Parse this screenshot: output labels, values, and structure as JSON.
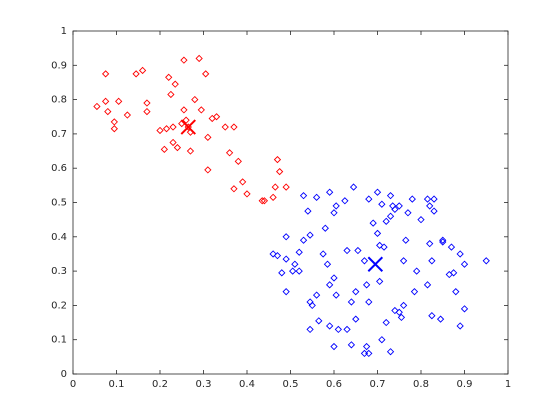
{
  "chart_data": {
    "type": "scatter",
    "xlim": [
      0,
      1
    ],
    "ylim": [
      0,
      1
    ],
    "xticks": [
      0,
      0.1,
      0.2,
      0.3,
      0.4,
      0.5,
      0.6,
      0.7,
      0.8,
      0.9,
      1
    ],
    "yticks": [
      0,
      0.1,
      0.2,
      0.3,
      0.4,
      0.5,
      0.6,
      0.7,
      0.8,
      0.9,
      1
    ],
    "grid": false,
    "series": [
      {
        "color": "#ff0000",
        "marker": "diamond",
        "x": [
          0.075,
          0.145,
          0.16,
          0.055,
          0.075,
          0.08,
          0.105,
          0.095,
          0.095,
          0.125,
          0.17,
          0.22,
          0.235,
          0.225,
          0.255,
          0.29,
          0.305,
          0.255,
          0.28,
          0.295,
          0.2,
          0.215,
          0.23,
          0.25,
          0.265,
          0.27,
          0.26,
          0.23,
          0.21,
          0.24,
          0.27,
          0.31,
          0.32,
          0.33,
          0.35,
          0.37,
          0.36,
          0.38,
          0.39,
          0.37,
          0.4,
          0.31,
          0.435,
          0.44,
          0.465,
          0.46,
          0.47,
          0.475,
          0.49,
          0.17
        ],
        "y": [
          0.875,
          0.875,
          0.885,
          0.78,
          0.795,
          0.765,
          0.795,
          0.735,
          0.715,
          0.755,
          0.79,
          0.865,
          0.845,
          0.815,
          0.915,
          0.92,
          0.875,
          0.77,
          0.8,
          0.77,
          0.71,
          0.715,
          0.72,
          0.73,
          0.72,
          0.705,
          0.74,
          0.675,
          0.655,
          0.66,
          0.65,
          0.69,
          0.745,
          0.75,
          0.72,
          0.72,
          0.645,
          0.62,
          0.56,
          0.54,
          0.525,
          0.595,
          0.505,
          0.505,
          0.545,
          0.515,
          0.625,
          0.59,
          0.545,
          0.765
        ]
      },
      {
        "color": "#0000ff",
        "marker": "diamond",
        "x": [
          0.645,
          0.59,
          0.53,
          0.56,
          0.625,
          0.605,
          0.6,
          0.54,
          0.7,
          0.71,
          0.68,
          0.73,
          0.735,
          0.74,
          0.73,
          0.75,
          0.78,
          0.77,
          0.815,
          0.83,
          0.82,
          0.83,
          0.8,
          0.69,
          0.7,
          0.72,
          0.58,
          0.545,
          0.49,
          0.53,
          0.52,
          0.47,
          0.49,
          0.51,
          0.52,
          0.505,
          0.48,
          0.46,
          0.575,
          0.585,
          0.63,
          0.655,
          0.67,
          0.705,
          0.715,
          0.76,
          0.765,
          0.85,
          0.85,
          0.82,
          0.87,
          0.89,
          0.9,
          0.95,
          0.825,
          0.79,
          0.865,
          0.875,
          0.815,
          0.88,
          0.9,
          0.89,
          0.845,
          0.825,
          0.785,
          0.76,
          0.75,
          0.755,
          0.74,
          0.72,
          0.68,
          0.675,
          0.705,
          0.65,
          0.605,
          0.6,
          0.56,
          0.49,
          0.59,
          0.64,
          0.55,
          0.545,
          0.565,
          0.59,
          0.61,
          0.63,
          0.65,
          0.6,
          0.64,
          0.675,
          0.67,
          0.68,
          0.73,
          0.71,
          0.545
        ],
        "y": [
          0.545,
          0.53,
          0.52,
          0.515,
          0.505,
          0.49,
          0.47,
          0.475,
          0.53,
          0.495,
          0.51,
          0.52,
          0.49,
          0.48,
          0.46,
          0.49,
          0.51,
          0.47,
          0.51,
          0.51,
          0.49,
          0.475,
          0.45,
          0.44,
          0.41,
          0.445,
          0.425,
          0.405,
          0.4,
          0.39,
          0.355,
          0.345,
          0.335,
          0.32,
          0.3,
          0.3,
          0.295,
          0.35,
          0.35,
          0.32,
          0.36,
          0.36,
          0.33,
          0.375,
          0.37,
          0.33,
          0.39,
          0.39,
          0.385,
          0.38,
          0.37,
          0.35,
          0.32,
          0.33,
          0.33,
          0.3,
          0.29,
          0.295,
          0.26,
          0.24,
          0.19,
          0.14,
          0.16,
          0.17,
          0.24,
          0.2,
          0.18,
          0.165,
          0.185,
          0.15,
          0.21,
          0.26,
          0.27,
          0.24,
          0.23,
          0.28,
          0.23,
          0.24,
          0.26,
          0.21,
          0.2,
          0.13,
          0.155,
          0.14,
          0.13,
          0.13,
          0.16,
          0.08,
          0.085,
          0.08,
          0.06,
          0.06,
          0.065,
          0.1,
          0.21
        ]
      },
      {
        "color": "#ff0000",
        "marker": "x",
        "x": [
          0.265
        ],
        "y": [
          0.72
        ]
      },
      {
        "color": "#0000ff",
        "marker": "x",
        "x": [
          0.695
        ],
        "y": [
          0.32
        ]
      }
    ]
  }
}
